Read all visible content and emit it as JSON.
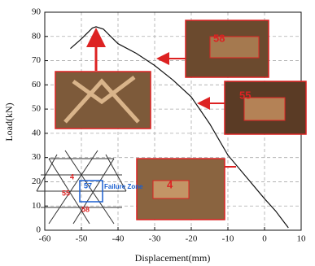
{
  "chart_data": {
    "type": "line",
    "x_label": "Displacement(mm)",
    "y_label": "Load(kN)",
    "x": [
      -53,
      -50,
      -47,
      -46,
      -44,
      -42,
      -40,
      -35,
      -30,
      -25,
      -20,
      -15,
      -10,
      -5,
      0,
      3,
      5,
      6.5
    ],
    "values": [
      75,
      79,
      83.5,
      84,
      83,
      80,
      77,
      73,
      68,
      62,
      55,
      44,
      31,
      22,
      13,
      8,
      4,
      1
    ],
    "color": "#111111",
    "xlim": [
      -60,
      10
    ],
    "xticks": [
      -60,
      -50,
      -40,
      -30,
      -20,
      -10,
      0,
      10
    ],
    "ylim": [
      0,
      90
    ],
    "yticks": [
      0,
      10,
      20,
      30,
      40,
      50,
      60,
      70,
      80,
      90
    ],
    "grid": true,
    "annotations": [
      "58",
      "55",
      "4",
      "4",
      "55",
      "58",
      "57",
      "Failure Zone"
    ]
  }
}
